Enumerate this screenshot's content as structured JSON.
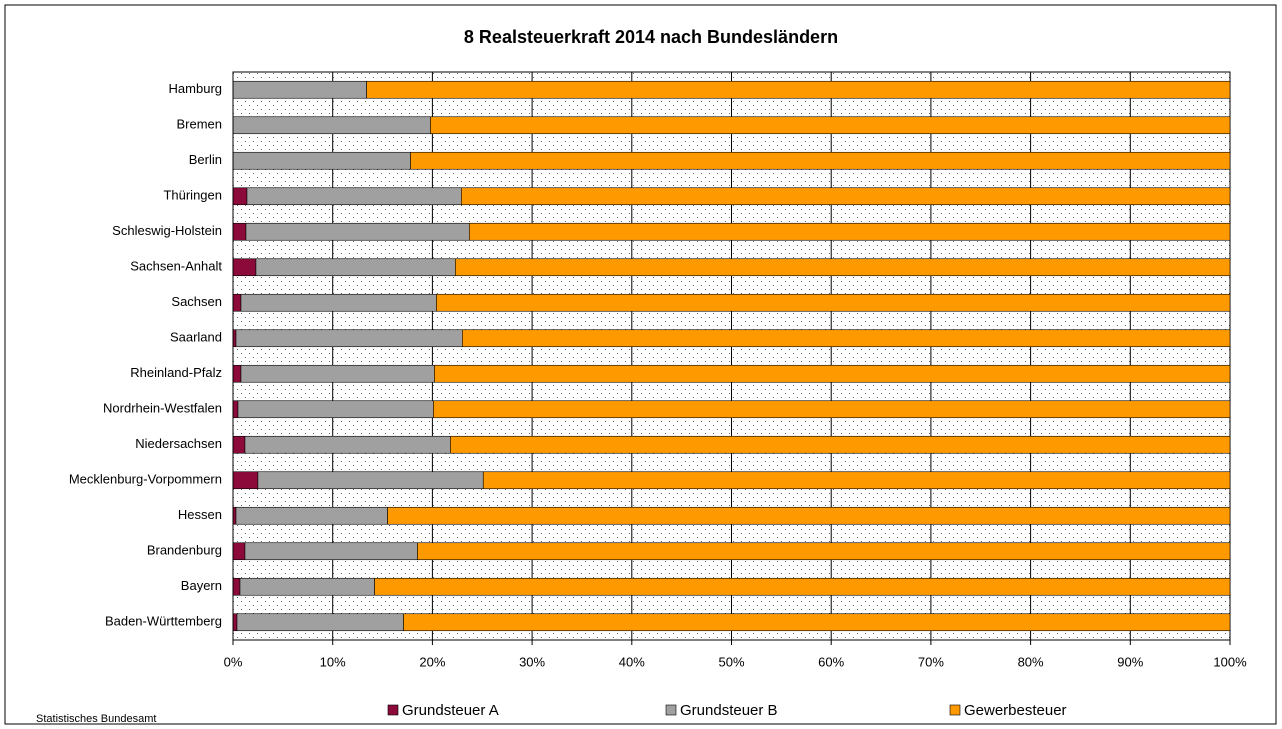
{
  "chart_data": {
    "type": "stacked-barh",
    "title": "8 Realsteuerkraft 2014 nach Bundesländern",
    "source": "Statistisches Bundesamt",
    "categories": [
      "Hamburg",
      "Bremen",
      "Berlin",
      "Thüringen",
      "Schleswig-Holstein",
      "Sachsen-Anhalt",
      "Sachsen",
      "Saarland",
      "Rheinland-Pfalz",
      "Nordrhein-Westfalen",
      "Niedersachsen",
      "Mecklenburg-Vorpommern",
      "Hessen",
      "Brandenburg",
      "Bayern",
      "Baden-Württemberg"
    ],
    "series": [
      {
        "name": "Grundsteuer A",
        "color": "#8b0a3a",
        "values": [
          0,
          0,
          0,
          1.4,
          1.3,
          2.3,
          0.8,
          0.3,
          0.8,
          0.5,
          1.2,
          2.5,
          0.3,
          1.2,
          0.7,
          0.4
        ]
      },
      {
        "name": "Grundsteuer B",
        "color": "#a0a0a0",
        "values": [
          13.4,
          19.8,
          17.8,
          21.5,
          22.4,
          20.0,
          19.6,
          22.7,
          19.4,
          19.6,
          20.6,
          22.6,
          15.2,
          17.3,
          13.5,
          16.7
        ]
      },
      {
        "name": "Gewerbesteuer",
        "color": "#ff9900",
        "values": [
          86.6,
          80.2,
          82.2,
          77.1,
          76.3,
          77.7,
          79.6,
          77.0,
          79.8,
          79.9,
          78.2,
          74.9,
          84.5,
          81.5,
          85.8,
          82.9
        ]
      }
    ],
    "xlim": [
      0,
      100
    ],
    "xticks": [
      {
        "value": 0,
        "label": "0%"
      },
      {
        "value": 10,
        "label": "10%"
      },
      {
        "value": 20,
        "label": "20%"
      },
      {
        "value": 30,
        "label": "30%"
      },
      {
        "value": 40,
        "label": "40%"
      },
      {
        "value": 50,
        "label": "50%"
      },
      {
        "value": 60,
        "label": "60%"
      },
      {
        "value": 70,
        "label": "70%"
      },
      {
        "value": 80,
        "label": "80%"
      },
      {
        "value": 90,
        "label": "90%"
      },
      {
        "value": 100,
        "label": "100%"
      }
    ],
    "grid": true,
    "legend": "bottom"
  }
}
